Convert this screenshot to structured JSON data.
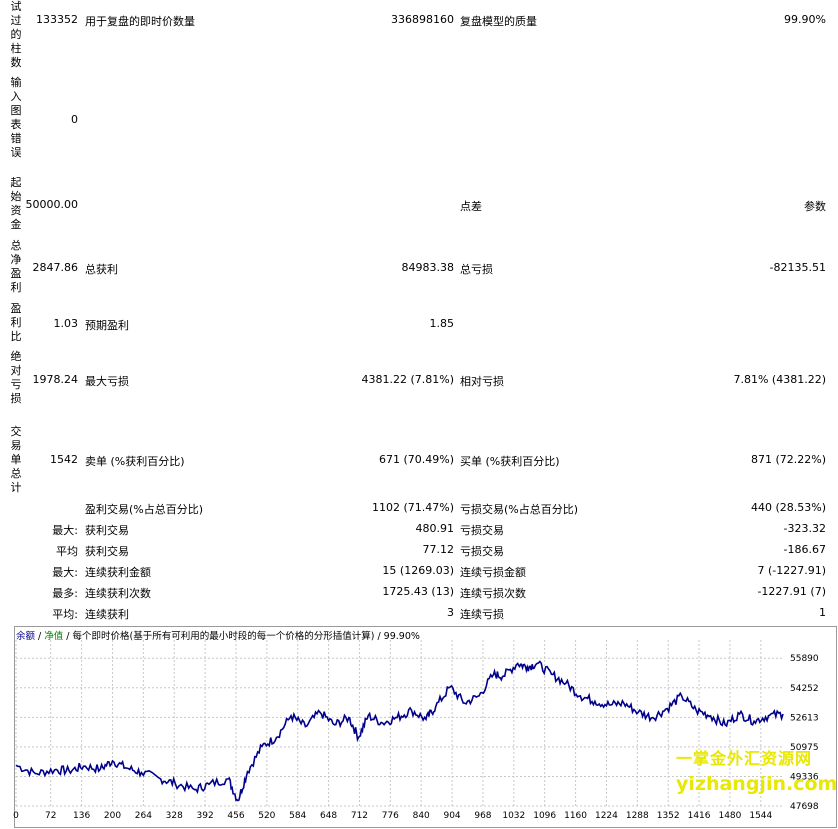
{
  "vertical_labels": {
    "bars_tested": "试过的柱数",
    "chart_errors": "输入图表错误",
    "initial_deposit": "起始资金",
    "net_profit": "总净盈利",
    "profit_factor": "盈利比",
    "absolute_drawdown": "绝对亏损",
    "total_trades": "交易单总计"
  },
  "stats": {
    "bars_tested": "133352",
    "ticks_label": "用于复盘的即时价数量",
    "ticks_value": "336898160",
    "quality_label": "复盘模型的质量",
    "quality_value": "99.90%",
    "chart_errors": "0",
    "initial_deposit": "50000.00",
    "spread_label": "点差",
    "spread_value": "参数",
    "net_profit": "2847.86",
    "gross_profit_label": "总获利",
    "gross_profit_value": "84983.38",
    "gross_loss_label": "总亏损",
    "gross_loss_value": "-82135.51",
    "profit_factor": "1.03",
    "expected_payoff_label": "预期盈利",
    "expected_payoff_value": "1.85",
    "absolute_drawdown": "1978.24",
    "max_drawdown_label": "最大亏损",
    "max_drawdown_value": "4381.22 (7.81%)",
    "relative_drawdown_label": "相对亏损",
    "relative_drawdown_value": "7.81% (4381.22)",
    "total_trades": "1542",
    "short_label": "卖单 (%获利百分比)",
    "short_value": "671 (70.49%)",
    "long_label": "买单 (%获利百分比)",
    "long_value": "871 (72.22%)"
  },
  "rows": [
    {
      "prefix": "",
      "l1": "盈利交易(%占总百分比)",
      "v1": "1102 (71.47%)",
      "l2": "亏损交易(%占总百分比)",
      "v2": "440 (28.53%)"
    },
    {
      "prefix": "最大:",
      "l1": "获利交易",
      "v1": "480.91",
      "l2": "亏损交易",
      "v2": "-323.32"
    },
    {
      "prefix": "平均",
      "l1": "获利交易",
      "v1": "77.12",
      "l2": "亏损交易",
      "v2": "-186.67"
    },
    {
      "prefix": "最大:",
      "l1": "连续获利金额",
      "v1": "15 (1269.03)",
      "l2": "连续亏损金额",
      "v2": "7 (-1227.91)"
    },
    {
      "prefix": "最多:",
      "l1": "连续获利次数",
      "v1": "1725.43 (13)",
      "l2": "连续亏损次数",
      "v2": "-1227.91 (7)"
    },
    {
      "prefix": "平均:",
      "l1": "连续获利",
      "v1": "3",
      "l2": "连续亏损",
      "v2": "1"
    }
  ],
  "chart_header": {
    "balance": "余额",
    "sep1": " / ",
    "equity": "净值",
    "rest": " / 每个即时价格(基于所有可利用的最小时段的每一个价格的分形插值计算) / 99.90%"
  },
  "watermark": {
    "line1": "一掌金外汇资源网",
    "line2": "yizhangjin.com"
  },
  "colors": {
    "series": "#00008b",
    "grid": "#c8c8c8"
  },
  "chart_data": {
    "type": "line",
    "title": "",
    "xlabel": "",
    "ylabel": "",
    "x_ticks": [
      0,
      72,
      136,
      200,
      264,
      328,
      392,
      456,
      520,
      584,
      648,
      712,
      776,
      840,
      904,
      968,
      1032,
      1096,
      1160,
      1224,
      1288,
      1352,
      1416,
      1480,
      1544
    ],
    "y_ticks": [
      47698,
      49336,
      50975,
      52613,
      54252,
      55890
    ],
    "xlim": [
      0,
      1590
    ],
    "ylim": [
      47698,
      56900
    ],
    "grid": true,
    "series": [
      {
        "x": [
          0,
          40,
          80,
          110,
          140,
          175,
          200,
          230,
          260,
          300,
          330,
          370,
          400,
          440,
          460,
          480,
          510,
          540,
          570,
          600,
          630,
          660,
          690,
          710,
          730,
          760,
          790,
          820,
          850,
          870,
          900,
          930,
          960,
          990,
          1010,
          1040,
          1060,
          1080,
          1110,
          1140,
          1170,
          1200,
          1230,
          1260,
          1290,
          1320,
          1350,
          1380,
          1410,
          1440,
          1470,
          1500,
          1530,
          1560,
          1590
        ],
        "y": [
          49950,
          49500,
          49700,
          49650,
          49900,
          49750,
          50200,
          49800,
          49550,
          49200,
          48950,
          48600,
          48900,
          49200,
          48000,
          49600,
          51000,
          51500,
          52700,
          52100,
          52900,
          52200,
          52600,
          51500,
          52700,
          52300,
          52600,
          53000,
          52500,
          53200,
          54300,
          53400,
          53800,
          55000,
          54900,
          55600,
          55400,
          55600,
          55000,
          54500,
          53800,
          53500,
          53300,
          53400,
          52900,
          52600,
          53100,
          53800,
          53000,
          52700,
          52200,
          52800,
          52400,
          52700,
          52800
        ]
      }
    ]
  }
}
